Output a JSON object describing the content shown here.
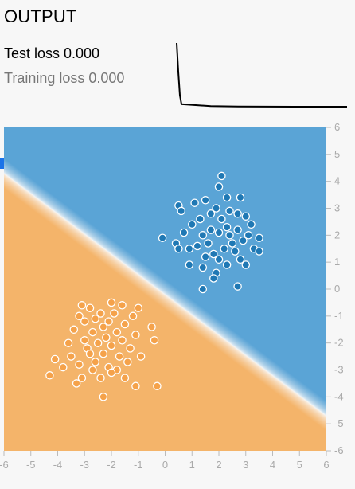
{
  "panel": {
    "title": "OUTPUT",
    "test_loss_label": "Test loss 0.000",
    "training_loss_label": "Training loss 0.000"
  },
  "colors": {
    "positive": "#4b9cd3",
    "negative": "#f6b35e",
    "positive_point": "#1f78b4",
    "negative_point": "#f5a24a",
    "loss_curve": "#000000"
  },
  "axes": {
    "x_ticks": [
      "-6",
      "-5",
      "-4",
      "-3",
      "-2",
      "-1",
      "0",
      "1",
      "2",
      "3",
      "4",
      "5",
      "6"
    ],
    "y_ticks": [
      "6",
      "5",
      "4",
      "3",
      "2",
      "1",
      "0",
      "-1",
      "-2",
      "-3",
      "-4",
      "-5",
      "-6"
    ],
    "xlim": [
      -6,
      6
    ],
    "ylim": [
      -6,
      6
    ]
  },
  "chart_data": {
    "type": "scatter",
    "decision_boundary": "line from (-6, 4.3) to (6, -4.7)",
    "clusters": [
      {
        "class": "positive",
        "points": [
          [
            2.1,
            4.2
          ],
          [
            2.0,
            3.8
          ],
          [
            0.5,
            3.1
          ],
          [
            1.5,
            3.3
          ],
          [
            2.3,
            3.4
          ],
          [
            2.8,
            3.4
          ],
          [
            1.1,
            3.2
          ],
          [
            1.9,
            3.0
          ],
          [
            2.4,
            2.9
          ],
          [
            0.6,
            2.9
          ],
          [
            1.7,
            2.8
          ],
          [
            2.7,
            2.8
          ],
          [
            3.0,
            2.7
          ],
          [
            1.3,
            2.6
          ],
          [
            2.1,
            2.6
          ],
          [
            3.2,
            2.4
          ],
          [
            1.0,
            2.4
          ],
          [
            2.3,
            2.3
          ],
          [
            2.7,
            2.2
          ],
          [
            0.7,
            2.1
          ],
          [
            2.0,
            2.1
          ],
          [
            3.1,
            2.0
          ],
          [
            1.4,
            2.0
          ],
          [
            3.5,
            1.9
          ],
          [
            -0.1,
            1.9
          ],
          [
            0.4,
            1.7
          ],
          [
            2.5,
            1.7
          ],
          [
            1.6,
            1.7
          ],
          [
            2.9,
            1.8
          ],
          [
            1.2,
            1.6
          ],
          [
            2.2,
            1.5
          ],
          [
            3.3,
            1.5
          ],
          [
            0.9,
            1.5
          ],
          [
            1.8,
            1.3
          ],
          [
            2.6,
            1.4
          ],
          [
            3.5,
            1.4
          ],
          [
            1.5,
            1.2
          ],
          [
            2.0,
            1.1
          ],
          [
            2.8,
            1.1
          ],
          [
            0.9,
            0.9
          ],
          [
            1.4,
            0.8
          ],
          [
            2.3,
            0.9
          ],
          [
            3.0,
            0.9
          ],
          [
            1.9,
            0.6
          ],
          [
            1.8,
            0.4
          ],
          [
            2.7,
            0.1
          ],
          [
            1.4,
            0.0
          ],
          [
            0.5,
            1.5
          ],
          [
            2.4,
            2.0
          ],
          [
            1.7,
            2.2
          ]
        ]
      },
      {
        "class": "negative",
        "points": [
          [
            -2.0,
            -0.5
          ],
          [
            -1.6,
            -0.6
          ],
          [
            -3.1,
            -0.6
          ],
          [
            -2.8,
            -0.7
          ],
          [
            -1.0,
            -0.7
          ],
          [
            -2.4,
            -0.9
          ],
          [
            -1.9,
            -0.9
          ],
          [
            -3.2,
            -1.0
          ],
          [
            -1.2,
            -1.0
          ],
          [
            -2.6,
            -1.1
          ],
          [
            -2.1,
            -1.2
          ],
          [
            -3.0,
            -1.2
          ],
          [
            -1.5,
            -1.3
          ],
          [
            -2.3,
            -1.4
          ],
          [
            -0.5,
            -1.4
          ],
          [
            -3.4,
            -1.5
          ],
          [
            -1.8,
            -1.6
          ],
          [
            -2.7,
            -1.6
          ],
          [
            -1.1,
            -1.7
          ],
          [
            -2.2,
            -1.8
          ],
          [
            -3.0,
            -1.9
          ],
          [
            -1.6,
            -1.9
          ],
          [
            -0.4,
            -1.9
          ],
          [
            -2.5,
            -2.0
          ],
          [
            -3.6,
            -2.0
          ],
          [
            -2.0,
            -2.1
          ],
          [
            -1.3,
            -2.2
          ],
          [
            -2.9,
            -2.2
          ],
          [
            -4.1,
            -2.6
          ],
          [
            -2.3,
            -2.4
          ],
          [
            -1.7,
            -2.5
          ],
          [
            -0.9,
            -2.5
          ],
          [
            -3.5,
            -2.5
          ],
          [
            -2.6,
            -2.7
          ],
          [
            -1.4,
            -2.7
          ],
          [
            -3.2,
            -2.8
          ],
          [
            -2.1,
            -2.9
          ],
          [
            -3.8,
            -2.9
          ],
          [
            -1.8,
            -3.0
          ],
          [
            -2.7,
            -3.0
          ],
          [
            -4.3,
            -3.2
          ],
          [
            -3.1,
            -3.3
          ],
          [
            -2.4,
            -3.3
          ],
          [
            -1.5,
            -3.3
          ],
          [
            -3.3,
            -3.5
          ],
          [
            -1.1,
            -3.6
          ],
          [
            -0.3,
            -3.6
          ],
          [
            -2.3,
            -4.0
          ],
          [
            -2.0,
            -3.1
          ],
          [
            -2.8,
            -2.4
          ]
        ]
      }
    ],
    "loss_curve": [
      1.0,
      0.55,
      0.18,
      0.04,
      0.01,
      0.003,
      0.001,
      0.0,
      0.0,
      0.0
    ]
  }
}
